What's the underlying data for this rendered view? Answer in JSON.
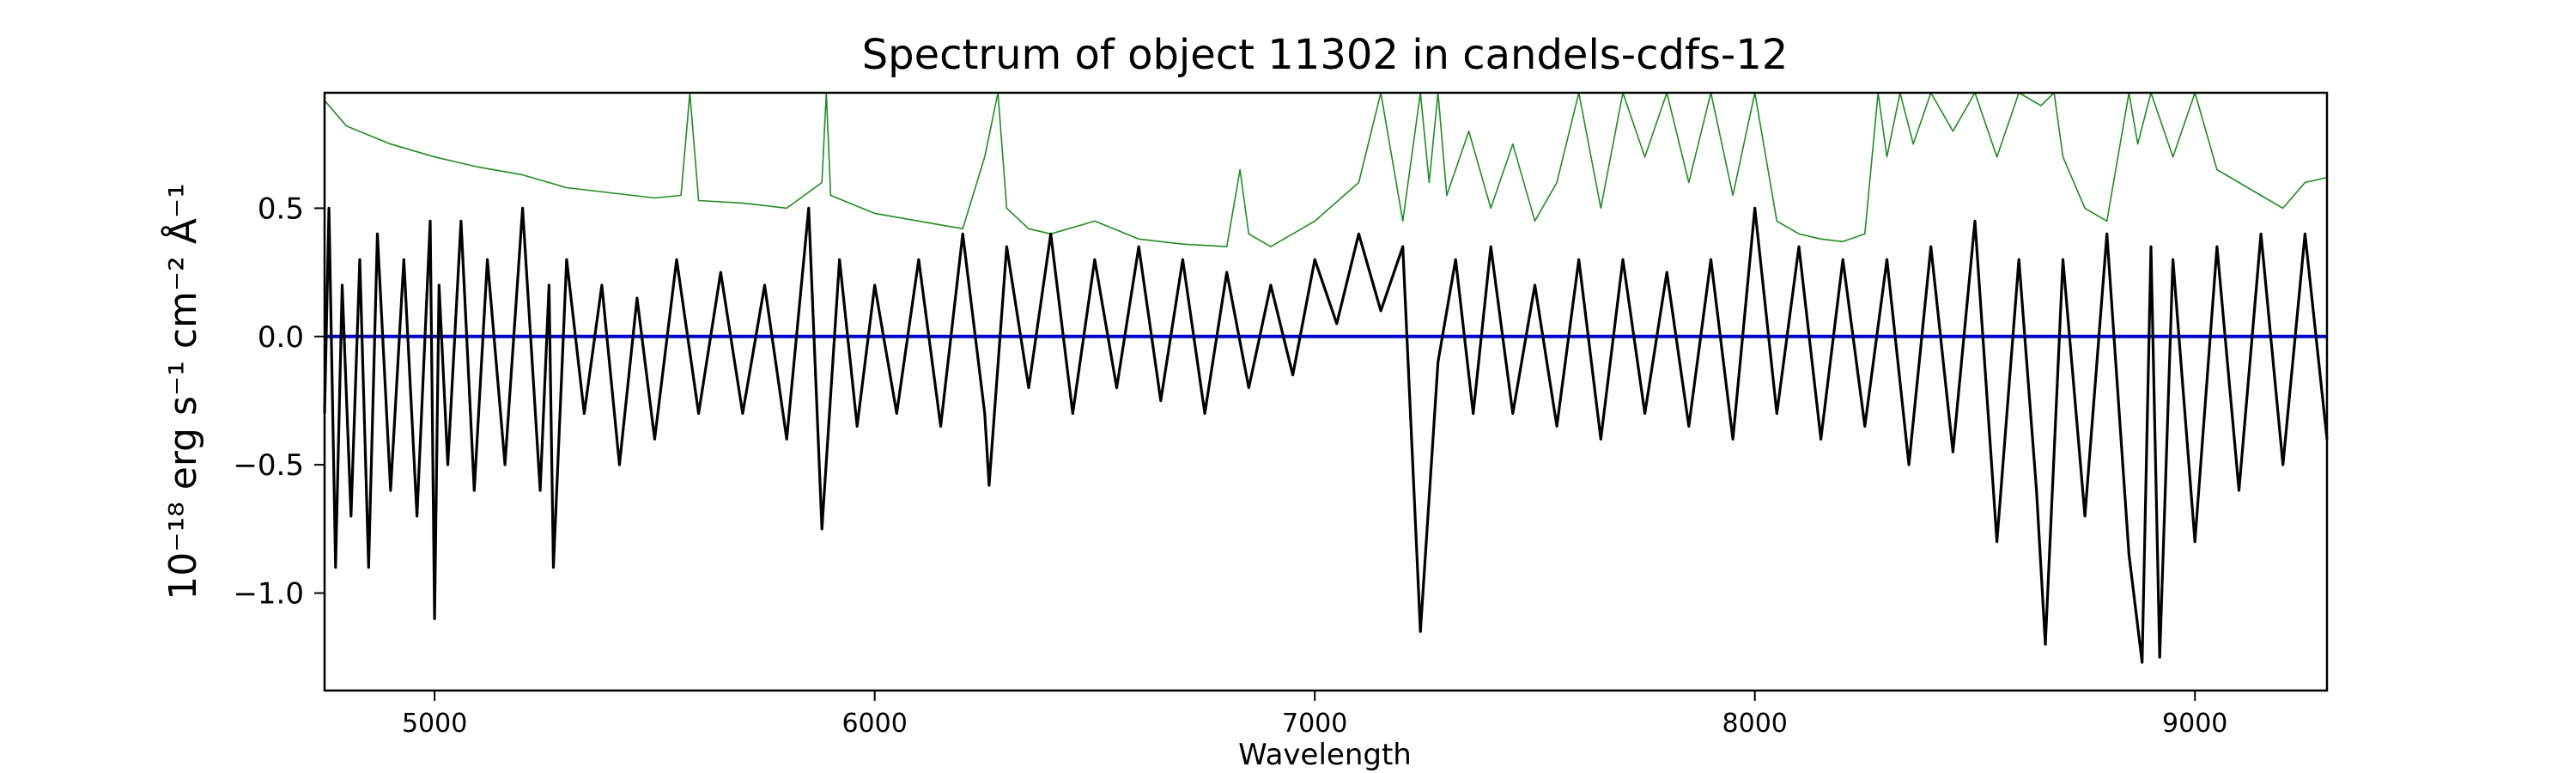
{
  "chart_data": {
    "type": "line",
    "title": "Spectrum of object 11302 in candels-cdfs-12",
    "xlabel": "Wavelength",
    "ylabel": "10⁻¹⁸ erg s⁻¹ cm⁻² Å⁻¹",
    "xlim": [
      4750,
      9300
    ],
    "ylim": [
      -1.38,
      0.95
    ],
    "xticks": [
      5000,
      6000,
      7000,
      8000,
      9000
    ],
    "xtick_labels": [
      "5000",
      "6000",
      "7000",
      "8000",
      "9000"
    ],
    "yticks": [
      -1.0,
      -0.5,
      0.0,
      0.5
    ],
    "ytick_labels": [
      "−1.0",
      "−0.5",
      "0.0",
      "0.5"
    ],
    "grid": false,
    "legend": null,
    "series": [
      {
        "color": "#000000",
        "style": "noisy-flux",
        "x": [
          4750,
          4760,
          4775,
          4790,
          4810,
          4830,
          4850,
          4870,
          4900,
          4930,
          4960,
          4990,
          5000,
          5010,
          5030,
          5060,
          5090,
          5120,
          5160,
          5200,
          5240,
          5260,
          5270,
          5300,
          5340,
          5380,
          5420,
          5460,
          5500,
          5550,
          5600,
          5650,
          5700,
          5750,
          5800,
          5850,
          5880,
          5920,
          5960,
          6000,
          6050,
          6100,
          6150,
          6200,
          6250,
          6260,
          6300,
          6350,
          6400,
          6450,
          6500,
          6550,
          6600,
          6650,
          6700,
          6750,
          6800,
          6850,
          6900,
          6950,
          7000,
          7050,
          7100,
          7150,
          7200,
          7240,
          7280,
          7320,
          7360,
          7400,
          7450,
          7500,
          7550,
          7600,
          7650,
          7700,
          7750,
          7800,
          7850,
          7900,
          7950,
          8000,
          8050,
          8100,
          8150,
          8200,
          8250,
          8300,
          8350,
          8400,
          8450,
          8500,
          8550,
          8600,
          8640,
          8660,
          8700,
          8750,
          8800,
          8850,
          8880,
          8900,
          8920,
          8950,
          9000,
          9050,
          9100,
          9150,
          9200,
          9250,
          9300
        ],
        "y": [
          -0.3,
          0.5,
          -0.9,
          0.2,
          -0.7,
          0.3,
          -0.9,
          0.4,
          -0.6,
          0.3,
          -0.7,
          0.45,
          -1.1,
          0.2,
          -0.5,
          0.45,
          -0.6,
          0.3,
          -0.5,
          0.5,
          -0.6,
          0.2,
          -0.9,
          0.3,
          -0.3,
          0.2,
          -0.5,
          0.15,
          -0.4,
          0.3,
          -0.3,
          0.25,
          -0.3,
          0.2,
          -0.4,
          0.5,
          -0.75,
          0.3,
          -0.35,
          0.2,
          -0.3,
          0.3,
          -0.35,
          0.4,
          -0.3,
          -0.58,
          0.35,
          -0.2,
          0.4,
          -0.3,
          0.3,
          -0.2,
          0.35,
          -0.25,
          0.3,
          -0.3,
          0.25,
          -0.2,
          0.2,
          -0.15,
          0.3,
          0.05,
          0.4,
          0.1,
          0.35,
          -1.15,
          -0.1,
          0.3,
          -0.3,
          0.35,
          -0.3,
          0.2,
          -0.35,
          0.3,
          -0.4,
          0.3,
          -0.3,
          0.25,
          -0.35,
          0.3,
          -0.4,
          0.5,
          -0.3,
          0.35,
          -0.4,
          0.3,
          -0.35,
          0.3,
          -0.5,
          0.35,
          -0.45,
          0.45,
          -0.8,
          0.3,
          -0.6,
          -1.2,
          0.3,
          -0.7,
          0.4,
          -0.85,
          -1.27,
          0.35,
          -1.25,
          0.3,
          -0.8,
          0.35,
          -0.6,
          0.4,
          -0.5,
          0.4,
          -0.4
        ]
      },
      {
        "color": "#0000cc",
        "style": "zero-line",
        "x": [
          4750,
          9300
        ],
        "y": [
          0.0,
          0.0
        ]
      },
      {
        "color": "#228b22",
        "style": "contamination",
        "x": [
          4750,
          4800,
          4900,
          5000,
          5100,
          5200,
          5300,
          5400,
          5500,
          5560,
          5580,
          5600,
          5700,
          5800,
          5880,
          5890,
          5900,
          6000,
          6100,
          6200,
          6250,
          6280,
          6300,
          6350,
          6400,
          6500,
          6600,
          6700,
          6800,
          6830,
          6850,
          6900,
          7000,
          7100,
          7150,
          7200,
          7240,
          7260,
          7280,
          7300,
          7350,
          7400,
          7450,
          7500,
          7550,
          7600,
          7650,
          7700,
          7750,
          7800,
          7850,
          7900,
          7950,
          8000,
          8050,
          8100,
          8150,
          8200,
          8250,
          8280,
          8300,
          8330,
          8360,
          8400,
          8450,
          8500,
          8550,
          8600,
          8650,
          8680,
          8700,
          8750,
          8800,
          8850,
          8870,
          8900,
          8950,
          9000,
          9050,
          9100,
          9150,
          9200,
          9250,
          9300
        ],
        "y": [
          0.92,
          0.82,
          0.75,
          0.7,
          0.66,
          0.63,
          0.58,
          0.56,
          0.54,
          0.55,
          0.95,
          0.53,
          0.52,
          0.5,
          0.6,
          0.95,
          0.55,
          0.48,
          0.45,
          0.42,
          0.7,
          0.95,
          0.5,
          0.42,
          0.4,
          0.45,
          0.38,
          0.36,
          0.35,
          0.65,
          0.4,
          0.35,
          0.45,
          0.6,
          0.95,
          0.45,
          0.95,
          0.6,
          0.95,
          0.55,
          0.8,
          0.5,
          0.75,
          0.45,
          0.6,
          0.95,
          0.5,
          0.95,
          0.7,
          0.95,
          0.6,
          0.95,
          0.55,
          0.95,
          0.45,
          0.4,
          0.38,
          0.37,
          0.4,
          0.95,
          0.7,
          0.95,
          0.75,
          0.95,
          0.8,
          0.95,
          0.7,
          0.95,
          0.9,
          0.95,
          0.7,
          0.5,
          0.45,
          0.95,
          0.75,
          0.95,
          0.7,
          0.95,
          0.65,
          0.6,
          0.55,
          0.5,
          0.6,
          0.62
        ]
      }
    ]
  }
}
